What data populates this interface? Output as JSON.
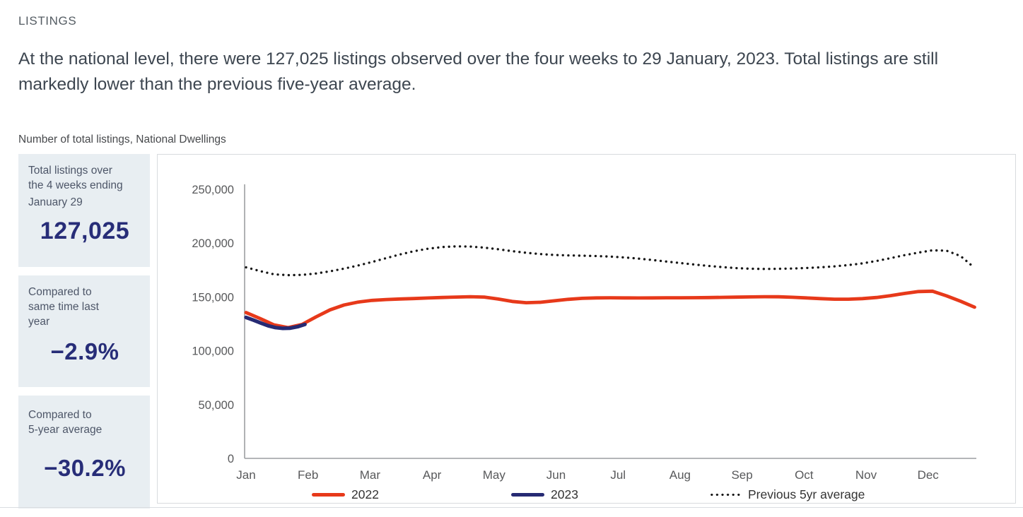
{
  "page": {
    "heading": "LISTINGS",
    "paragraph": "At the national level, there were 127,025 listings observed over the four weeks to 29 January, 2023. Total listings are still markedly lower than the previous five-year average.",
    "chart_subtitle": "Number of total listings, National Dwellings"
  },
  "stats": [
    {
      "label_lines": [
        "Total listings over",
        "the 4 weeks ending",
        "January 29"
      ],
      "value": "127,025"
    },
    {
      "label_lines": [
        "Compared to",
        "same time last",
        "year"
      ],
      "value": "−2.9%"
    },
    {
      "label_lines": [
        "Compared to",
        "5-year average"
      ],
      "value": "−30.2%"
    }
  ],
  "colors": {
    "accent_red": "#e7391a",
    "accent_navy": "#262a73",
    "dotted_black": "#161616",
    "stat_box_bg": "#e8eef2",
    "stat_value_navy": "#272d78",
    "axis_gray": "#9c9ea1",
    "axis_text": "#58595b",
    "panel_border": "#d8dbde"
  },
  "chart_data": {
    "type": "line",
    "title": "Number of total listings, National Dwellings",
    "xlabel": "",
    "ylabel": "",
    "grid": false,
    "legend_position": "bottom",
    "x_axis": {
      "unit": "month",
      "tick_labels": [
        "Jan",
        "Feb",
        "Mar",
        "Apr",
        "May",
        "Jun",
        "Jul",
        "Aug",
        "Sep",
        "Oct",
        "Nov",
        "Dec"
      ]
    },
    "y_axis": {
      "min": 0,
      "max": 250000,
      "tick_step": 50000,
      "tick_values": [
        0,
        50000,
        100000,
        150000,
        200000,
        250000
      ],
      "tick_labels": [
        "0",
        "50,000",
        "100,000",
        "150,000",
        "200,000",
        "250,000"
      ]
    },
    "series": [
      {
        "name": "2022",
        "color": "#e7391a",
        "style": "solid",
        "stroke_width": 4.8,
        "x_start_month": 0,
        "x_end_month": 11.75,
        "values": [
          135500,
          130000,
          124000,
          121500,
          124500,
          131500,
          138000,
          142500,
          145200,
          146800,
          147600,
          148100,
          148500,
          149000,
          149500,
          149900,
          150200,
          149900,
          148000,
          145800,
          144600,
          145000,
          146400,
          147800,
          148700,
          149100,
          149200,
          149100,
          149000,
          149100,
          149200,
          149200,
          149300,
          149400,
          149600,
          149800,
          150000,
          150200,
          150100,
          149700,
          149100,
          148400,
          147900,
          147900,
          148400,
          149500,
          151200,
          153200,
          155000,
          155300,
          151000,
          146000,
          140500
        ]
      },
      {
        "name": "Previous 5yr average",
        "color": "#161616",
        "style": "dotted",
        "stroke_width": 3.3,
        "x_start_month": 0,
        "x_end_month": 11.75,
        "values": [
          177500,
          174000,
          171000,
          170200,
          170500,
          171800,
          173800,
          176300,
          179200,
          182500,
          186000,
          189500,
          192500,
          194800,
          196300,
          197000,
          196800,
          195800,
          194300,
          192500,
          191000,
          189800,
          189000,
          188600,
          188300,
          188000,
          187500,
          186700,
          185600,
          184300,
          182900,
          181500,
          180100,
          178800,
          177700,
          176800,
          176200,
          176000,
          176100,
          176400,
          176900,
          177500,
          178400,
          179600,
          181200,
          183400,
          186000,
          188800,
          191200,
          193300,
          193000,
          188000,
          177000
        ]
      },
      {
        "name": "2023",
        "color": "#262a73",
        "style": "solid",
        "stroke_width": 5.2,
        "x_start_month": 0,
        "x_end_month": 0.95,
        "values": [
          131000,
          128500,
          125800,
          123200,
          121500,
          120800,
          121000,
          122300,
          124500
        ]
      }
    ],
    "legend_order": [
      "2022",
      "2023",
      "Previous 5yr average"
    ]
  }
}
